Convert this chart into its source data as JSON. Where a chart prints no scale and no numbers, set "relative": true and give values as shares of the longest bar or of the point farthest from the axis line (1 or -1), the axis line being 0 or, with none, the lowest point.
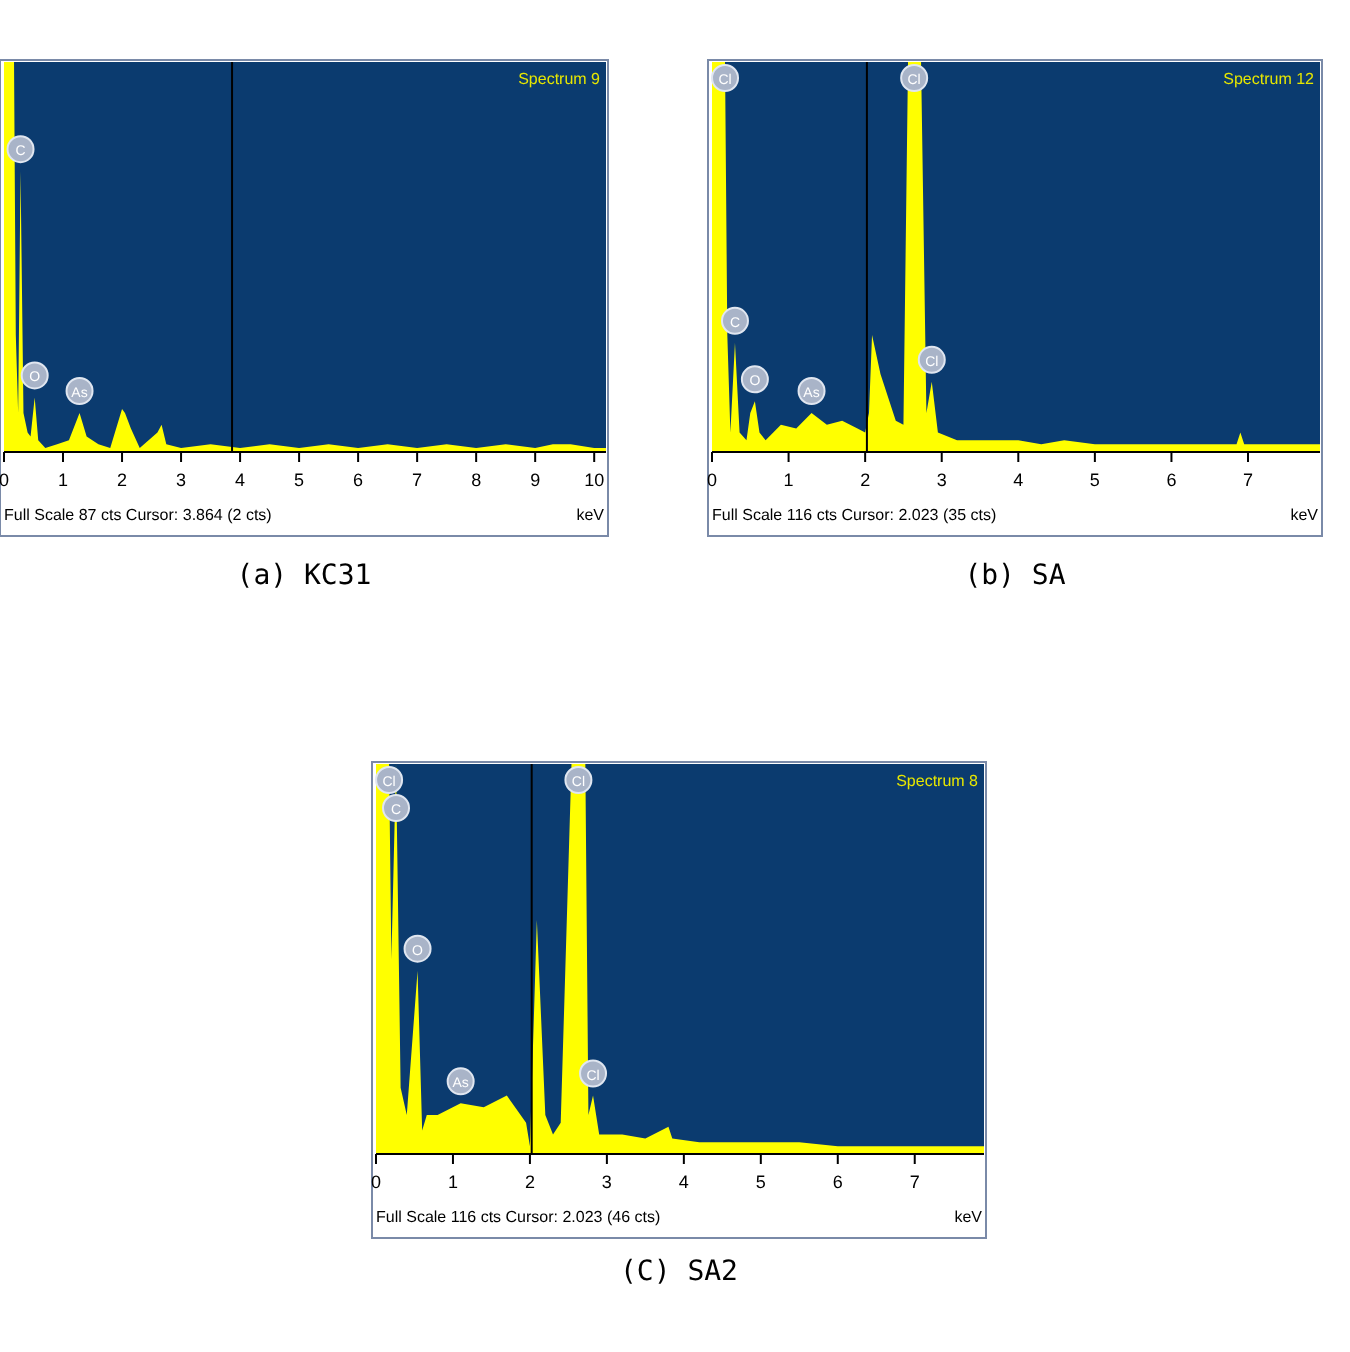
{
  "chart_data": [
    {
      "type": "area",
      "title": "(a) KC31",
      "xlabel": "keV",
      "relative": true,
      "color": "#ffff00",
      "xlim": [
        0,
        10.2
      ],
      "xticks": [
        0,
        1,
        2,
        3,
        4,
        5,
        6,
        7,
        8,
        9,
        10
      ],
      "x": [
        0,
        0.17,
        0.2,
        0.24,
        0.28,
        0.33,
        0.4,
        0.45,
        0.52,
        0.58,
        0.7,
        0.9,
        1.1,
        1.28,
        1.4,
        1.6,
        1.8,
        2.0,
        2.05,
        2.15,
        2.3,
        2.6,
        2.67,
        2.75,
        3.0,
        3.5,
        4.0,
        4.5,
        5.0,
        5.5,
        6.0,
        6.5,
        7.0,
        7.5,
        8.0,
        8.5,
        9.0,
        9.3,
        9.6,
        10.0,
        10.2
      ],
      "values": [
        1,
        1,
        0.3,
        0.1,
        0.72,
        0.1,
        0.05,
        0.04,
        0.14,
        0.03,
        0.01,
        0.02,
        0.03,
        0.1,
        0.04,
        0.02,
        0.01,
        0.11,
        0.1,
        0.06,
        0.01,
        0.05,
        0.07,
        0.02,
        0.01,
        0.02,
        0.01,
        0.02,
        0.01,
        0.02,
        0.01,
        0.02,
        0.01,
        0.02,
        0.01,
        0.02,
        0.01,
        0.02,
        0.02,
        0.01,
        0.01
      ],
      "annotations": [
        "Spectrum 9",
        "Full Scale 87 cts Cursor: 3.864  (2 cts)",
        {
          "text": "C",
          "x": 0.28,
          "y": 0.72
        },
        {
          "text": "O",
          "x": 0.52,
          "y": 0.14
        },
        {
          "text": "As",
          "x": 1.28,
          "y": 0.1
        }
      ],
      "ref_lines": [
        {
          "axis": "x",
          "value": 3.864,
          "color": "#000000"
        }
      ]
    },
    {
      "type": "area",
      "title": "(b) SA",
      "xlabel": "keV",
      "relative": true,
      "color": "#ffff00",
      "xlim": [
        0,
        7.94
      ],
      "xticks": [
        0,
        1,
        2,
        3,
        4,
        5,
        6,
        7
      ],
      "x": [
        0,
        0.17,
        0.2,
        0.24,
        0.3,
        0.36,
        0.45,
        0.5,
        0.56,
        0.62,
        0.7,
        0.9,
        1.1,
        1.3,
        1.5,
        1.7,
        1.9,
        2.0,
        2.05,
        2.09,
        2.2,
        2.4,
        2.5,
        2.56,
        2.64,
        2.73,
        2.8,
        2.87,
        2.95,
        3.2,
        3.6,
        4.0,
        4.3,
        4.6,
        5.0,
        5.5,
        6.0,
        6.5,
        6.85,
        6.9,
        6.95,
        7.3,
        7.6,
        7.94
      ],
      "values": [
        1,
        1,
        0.3,
        0.05,
        0.28,
        0.05,
        0.03,
        0.1,
        0.13,
        0.05,
        0.03,
        0.07,
        0.06,
        0.1,
        0.07,
        0.08,
        0.06,
        0.05,
        0.1,
        0.3,
        0.2,
        0.08,
        0.07,
        1,
        1,
        1,
        0.1,
        0.18,
        0.05,
        0.03,
        0.03,
        0.03,
        0.02,
        0.03,
        0.02,
        0.02,
        0.02,
        0.02,
        0.02,
        0.05,
        0.02,
        0.02,
        0.02,
        0.02
      ],
      "annotations": [
        "Spectrum 12",
        "Full Scale 116 cts Cursor: 2.023  (35 cts)",
        {
          "text": "Cl",
          "x": 0.17,
          "y": 1
        },
        {
          "text": "C",
          "x": 0.3,
          "y": 0.28
        },
        {
          "text": "O",
          "x": 0.56,
          "y": 0.13
        },
        {
          "text": "As",
          "x": 1.3,
          "y": 0.1
        },
        {
          "text": "Cl",
          "x": 2.64,
          "y": 1
        },
        {
          "text": "Cl",
          "x": 2.87,
          "y": 0.18
        }
      ],
      "ref_lines": [
        {
          "axis": "x",
          "value": 2.023,
          "color": "#000000"
        }
      ]
    },
    {
      "type": "area",
      "title": "(C) SA2",
      "xlabel": "keV",
      "relative": true,
      "color": "#ffff00",
      "xlim": [
        0,
        7.9
      ],
      "xticks": [
        0,
        1,
        2,
        3,
        4,
        5,
        6,
        7
      ],
      "x": [
        0,
        0.17,
        0.2,
        0.26,
        0.32,
        0.4,
        0.54,
        0.6,
        0.66,
        0.8,
        1.1,
        1.4,
        1.7,
        1.95,
        2.0,
        2.09,
        2.2,
        2.3,
        2.4,
        2.54,
        2.63,
        2.72,
        2.76,
        2.82,
        2.9,
        3.2,
        3.5,
        3.8,
        3.85,
        4.2,
        4.6,
        5.0,
        5.5,
        6.0,
        6.5,
        7.0,
        7.5,
        7.9
      ],
      "values": [
        1,
        1,
        0.5,
        1,
        0.17,
        0.1,
        0.47,
        0.06,
        0.1,
        0.1,
        0.13,
        0.12,
        0.15,
        0.08,
        0.02,
        0.6,
        0.1,
        0.05,
        0.08,
        1,
        1,
        1,
        0.1,
        0.15,
        0.05,
        0.05,
        0.04,
        0.07,
        0.04,
        0.03,
        0.03,
        0.03,
        0.03,
        0.02,
        0.02,
        0.02,
        0.02,
        0.02
      ],
      "annotations": [
        "Spectrum 8",
        "Full Scale 116 cts Cursor: 2.023  (46 cts)",
        {
          "text": "Cl",
          "x": 0.17,
          "y": 1
        },
        {
          "text": "C",
          "x": 0.26,
          "y": 1
        },
        {
          "text": "O",
          "x": 0.54,
          "y": 0.47
        },
        {
          "text": "As",
          "x": 1.1,
          "y": 0.13
        },
        {
          "text": "Cl",
          "x": 2.63,
          "y": 1
        },
        {
          "text": "Cl",
          "x": 2.82,
          "y": 0.15
        }
      ],
      "ref_lines": [
        {
          "axis": "x",
          "value": 2.023,
          "color": "#000000"
        }
      ]
    }
  ]
}
